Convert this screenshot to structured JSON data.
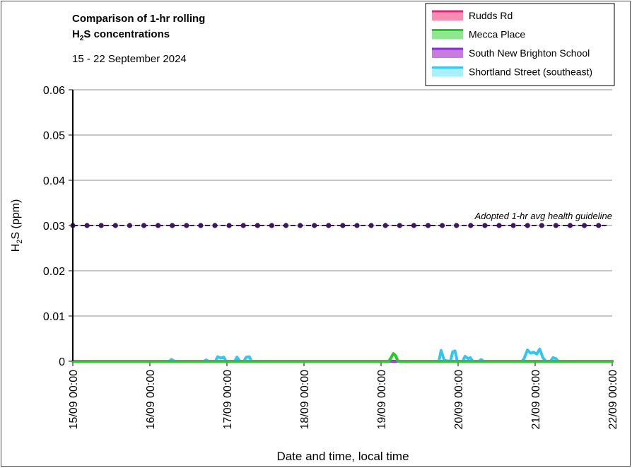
{
  "colors": {
    "rudds": "#e8237a",
    "rudds_fill": "#f48fb1",
    "mecca": "#22cc22",
    "mecca_fill": "#8fe88f",
    "snb": "#8a2be2",
    "snb_fill": "#c77dde",
    "shortland": "#33c6f0",
    "shortland_fill": "#a9f0ff",
    "guideline": "#3a1a5e"
  },
  "chart_data": {
    "type": "line",
    "title_line1": "Comparison of 1-hr rolling",
    "title_line2_prefix": "H",
    "title_line2_sub": "2",
    "title_line2_suffix": "S concentrations",
    "subtitle": "15 - 22 September 2024",
    "ylabel_prefix": "H",
    "ylabel_sub": "2",
    "ylabel_suffix": "S (ppm)",
    "xlabel": "Date and time, local time",
    "ylim": [
      0,
      0.06
    ],
    "xlim": [
      0,
      7
    ],
    "y_ticks": [
      "0",
      "0.01",
      "0.02",
      "0.03",
      "0.04",
      "0.05",
      "0.06"
    ],
    "x_ticks": [
      "15/09 00:00",
      "16/09 00:00",
      "17/09 00:00",
      "18/09 00:00",
      "19/09 00:00",
      "20/09 00:00",
      "21/09 00:00",
      "22/09 00:00"
    ],
    "guideline": {
      "value": 0.03,
      "label": "Adopted 1-hr avg health guideline"
    },
    "legend_position": "top-right",
    "series": [
      {
        "name": "Rudds Rd",
        "color_key": "rudds",
        "points": [
          [
            0,
            0
          ],
          [
            7,
            0
          ]
        ]
      },
      {
        "name": "Mecca Place",
        "color_key": "mecca",
        "points": [
          [
            0,
            0
          ],
          [
            4.1,
            0
          ],
          [
            4.13,
            0.0008
          ],
          [
            4.16,
            0.0017
          ],
          [
            4.19,
            0.0012
          ],
          [
            4.22,
            0
          ],
          [
            7,
            0
          ]
        ]
      },
      {
        "name": "South New Brighton School",
        "color_key": "snb",
        "points": [
          [
            0,
            0
          ],
          [
            7,
            0
          ]
        ]
      },
      {
        "name": "Shortland Street (southeast)",
        "color_key": "shortland",
        "points": [
          [
            0,
            0
          ],
          [
            1.25,
            0
          ],
          [
            1.28,
            0.0004
          ],
          [
            1.32,
            0
          ],
          [
            1.7,
            0
          ],
          [
            1.73,
            0.0003
          ],
          [
            1.76,
            0
          ],
          [
            1.85,
            0
          ],
          [
            1.88,
            0.001
          ],
          [
            1.92,
            0.0007
          ],
          [
            1.96,
            0.0009
          ],
          [
            1.99,
            0
          ],
          [
            2.1,
            0
          ],
          [
            2.13,
            0.0009
          ],
          [
            2.17,
            0
          ],
          [
            2.22,
            0
          ],
          [
            2.25,
            0.0009
          ],
          [
            2.29,
            0.001
          ],
          [
            2.32,
            0
          ],
          [
            4.75,
            0
          ],
          [
            4.78,
            0.0024
          ],
          [
            4.82,
            0.0002
          ],
          [
            4.9,
            0
          ],
          [
            4.93,
            0.0021
          ],
          [
            4.96,
            0.0023
          ],
          [
            4.99,
            0
          ],
          [
            5.06,
            0
          ],
          [
            5.09,
            0.0011
          ],
          [
            5.13,
            0.0006
          ],
          [
            5.16,
            0.0008
          ],
          [
            5.19,
            0
          ],
          [
            5.27,
            0
          ],
          [
            5.3,
            0.0004
          ],
          [
            5.33,
            0
          ],
          [
            5.83,
            0
          ],
          [
            5.86,
            0.0007
          ],
          [
            5.9,
            0.0025
          ],
          [
            5.94,
            0.0018
          ],
          [
            5.98,
            0.002
          ],
          [
            6.02,
            0.0016
          ],
          [
            6.06,
            0.0027
          ],
          [
            6.1,
            0.0008
          ],
          [
            6.14,
            0
          ],
          [
            6.2,
            0
          ],
          [
            6.23,
            0.0008
          ],
          [
            6.27,
            0.0006
          ],
          [
            6.3,
            0
          ],
          [
            7,
            0
          ]
        ]
      }
    ]
  }
}
